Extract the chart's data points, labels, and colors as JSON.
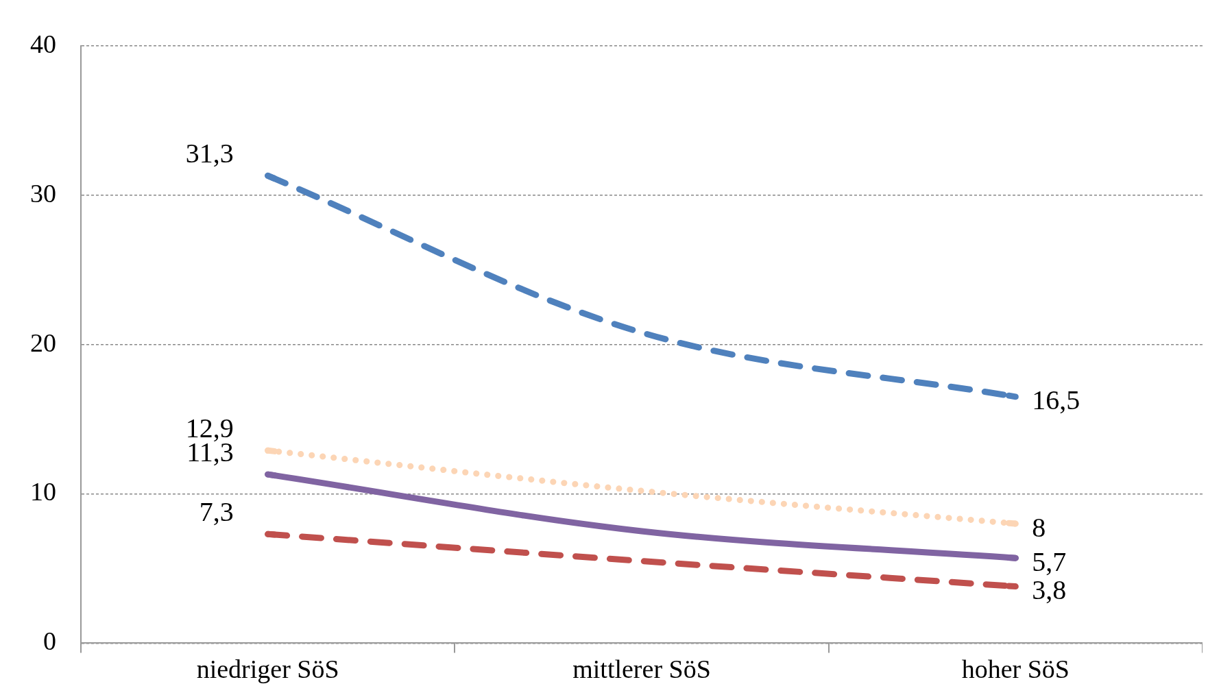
{
  "chart_data": {
    "type": "line",
    "categories": [
      "niedriger SöS",
      "mittlerer SöS",
      "hoher SöS"
    ],
    "series": [
      {
        "color": "#4f81bd",
        "line_style": "dashed",
        "values": [
          31.3,
          20.8,
          16.5
        ],
        "value_labels": [
          "31,3",
          null,
          "16,5"
        ]
      },
      {
        "color": "#fcd5b5",
        "line_style": "dotted",
        "values": [
          12.9,
          10.2,
          8
        ],
        "value_labels": [
          "12,9",
          null,
          "8"
        ]
      },
      {
        "color": "#8064a2",
        "line_style": "solid",
        "values": [
          11.3,
          7.5,
          5.7
        ],
        "value_labels": [
          "11,3",
          null,
          "5,7"
        ]
      },
      {
        "color": "#c0504d",
        "line_style": "dashed",
        "values": [
          7.3,
          5.5,
          3.8
        ],
        "value_labels": [
          "7,3",
          null,
          "3,8"
        ]
      }
    ],
    "ylim": [
      0,
      40
    ],
    "yticks": [
      0,
      10,
      20,
      30,
      40
    ],
    "grid": "y",
    "legend": false,
    "marker": "none"
  }
}
